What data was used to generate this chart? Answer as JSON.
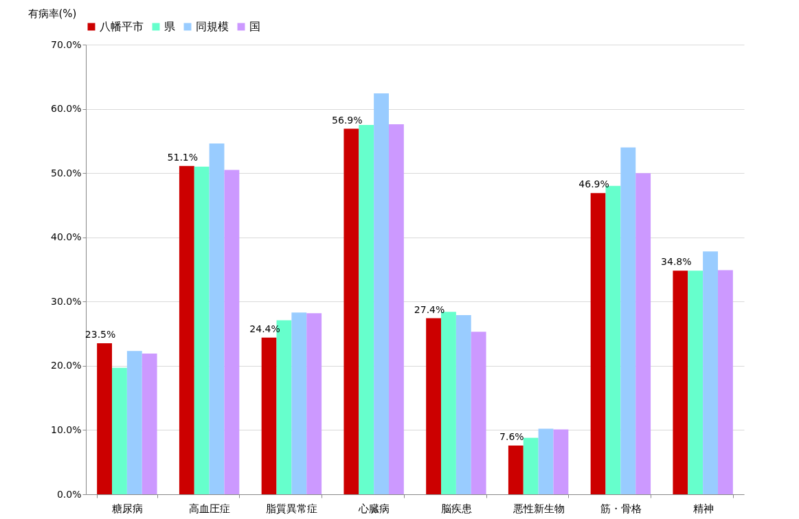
{
  "chart_data": {
    "type": "bar",
    "ylabel": "有病率(%)",
    "categories": [
      "糖尿病",
      "高血圧症",
      "脂質異常症",
      "心臓病",
      "脳疾患",
      "悪性新生物",
      "筋・骨格",
      "精神"
    ],
    "series": [
      {
        "name": "八幡平市",
        "color": "#cc0000",
        "values": [
          23.5,
          51.1,
          24.4,
          56.9,
          27.4,
          7.6,
          46.9,
          34.8
        ],
        "value_labels": [
          "23.5%",
          "51.1%",
          "24.4%",
          "56.9%",
          "27.4%",
          "7.6%",
          "46.9%",
          "34.8%"
        ]
      },
      {
        "name": "県",
        "color": "#66ffcc",
        "values": [
          19.7,
          51.0,
          27.1,
          57.5,
          28.4,
          8.8,
          48.0,
          34.8
        ]
      },
      {
        "name": "同規模",
        "color": "#99ccff",
        "values": [
          22.3,
          54.6,
          28.3,
          62.4,
          27.9,
          10.2,
          54.0,
          37.8
        ]
      },
      {
        "name": "国",
        "color": "#cc99ff",
        "values": [
          21.9,
          50.5,
          28.2,
          57.6,
          25.3,
          10.1,
          50.0,
          34.9
        ]
      }
    ],
    "ylim": [
      0,
      70
    ],
    "yticks": [
      {
        "value": 0,
        "label": "0.0%"
      },
      {
        "value": 10,
        "label": "10.0%"
      },
      {
        "value": 20,
        "label": "20.0%"
      },
      {
        "value": 30,
        "label": "30.0%"
      },
      {
        "value": 40,
        "label": "40.0%"
      },
      {
        "value": 50,
        "label": "50.0%"
      },
      {
        "value": 60,
        "label": "60.0%"
      },
      {
        "value": 70,
        "label": "70.0%"
      }
    ],
    "grid": "y",
    "legend": "top"
  }
}
